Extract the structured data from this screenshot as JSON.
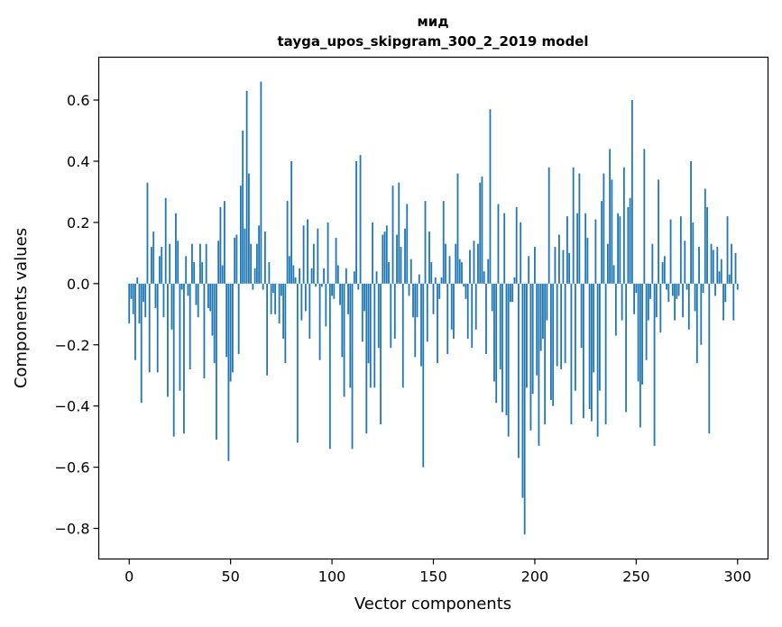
{
  "chart_data": {
    "type": "bar",
    "title_line1": "мид",
    "title_line2": "tayga_upos_skipgram_300_2_2019 model",
    "xlabel": "Vector components",
    "ylabel": "Components values",
    "xlim": [
      -15,
      315
    ],
    "ylim": [
      -0.9,
      0.74
    ],
    "xticks": [
      0,
      50,
      100,
      150,
      200,
      250,
      300
    ],
    "xtick_labels": [
      "0",
      "50",
      "100",
      "150",
      "200",
      "250",
      "300"
    ],
    "yticks": [
      -0.8,
      -0.6,
      -0.4,
      -0.2,
      0.0,
      0.2,
      0.4,
      0.6
    ],
    "ytick_labels": [
      "−0.8",
      "−0.6",
      "−0.4",
      "−0.2",
      "0.0",
      "0.2",
      "0.4",
      "0.6"
    ],
    "bar_color": "#1f77b4",
    "values": [
      -0.13,
      -0.05,
      -0.1,
      -0.25,
      0.02,
      -0.13,
      -0.39,
      -0.06,
      -0.11,
      0.33,
      -0.29,
      0.12,
      0.17,
      -0.08,
      -0.29,
      0.09,
      0.12,
      -0.11,
      0.28,
      -0.37,
      0.13,
      -0.15,
      -0.5,
      0.23,
      0.14,
      -0.35,
      -0.02,
      -0.49,
      0.09,
      -0.04,
      -0.28,
      0.13,
      0.07,
      -0.07,
      -0.11,
      0.13,
      0.07,
      -0.31,
      0.13,
      -0.08,
      -0.09,
      -0.17,
      -0.26,
      -0.51,
      0.14,
      0.25,
      0.06,
      0.27,
      -0.24,
      -0.58,
      -0.32,
      -0.29,
      0.15,
      0.16,
      -0.23,
      0.32,
      0.5,
      0.18,
      0.63,
      0.36,
      0.13,
      -0.02,
      0.05,
      0.13,
      0.19,
      0.66,
      -0.02,
      0.17,
      -0.3,
      0.07,
      -0.1,
      -0.03,
      -0.1,
      0.0,
      -0.13,
      -0.04,
      -0.18,
      -0.26,
      0.27,
      0.09,
      0.4,
      0.06,
      0.02,
      -0.52,
      0.05,
      -0.12,
      0.19,
      -0.09,
      0.21,
      -0.18,
      0.05,
      0.13,
      -0.01,
      0.18,
      -0.25,
      -0.01,
      0.05,
      -0.14,
      0.2,
      -0.54,
      -0.04,
      -0.05,
      0.15,
      0.06,
      -0.07,
      -0.24,
      -0.37,
      0.05,
      -0.1,
      -0.34,
      -0.54,
      0.04,
      0.4,
      -0.02,
      0.42,
      -0.19,
      -0.09,
      -0.49,
      -0.26,
      -0.34,
      0.2,
      -0.34,
      0.04,
      -0.21,
      -0.46,
      0.16,
      0.17,
      0.19,
      0.07,
      -0.21,
      0.32,
      -0.18,
      0.16,
      0.33,
      0.12,
      -0.34,
      0.18,
      0.26,
      -0.04,
      0.08,
      -0.11,
      -0.24,
      -0.11,
      0.03,
      -0.27,
      -0.6,
      0.27,
      -0.19,
      0.17,
      0.07,
      -0.1,
      0.02,
      -0.26,
      -0.05,
      0.02,
      0.27,
      0.13,
      -0.23,
      0.09,
      -0.15,
      -0.18,
      0.13,
      0.36,
      0.08,
      0.07,
      -0.01,
      -0.05,
      -0.18,
      0.11,
      -0.21,
      0.14,
      -0.15,
      0.13,
      0.33,
      0.35,
      0.04,
      -0.23,
      0.08,
      0.57,
      -0.09,
      -0.32,
      -0.39,
      0.26,
      -0.28,
      -0.42,
      0.23,
      -0.43,
      -0.5,
      -0.06,
      -0.06,
      0.02,
      0.25,
      -0.57,
      0.2,
      -0.7,
      -0.82,
      -0.34,
      0.09,
      -0.48,
      -0.36,
      0.12,
      -0.3,
      -0.53,
      -0.22,
      -0.18,
      -0.46,
      -0.12,
      0.38,
      -0.38,
      -0.4,
      0.12,
      -0.27,
      0.16,
      -0.28,
      0.11,
      -0.26,
      0.22,
      0.1,
      -0.46,
      0.38,
      -0.35,
      0.23,
      0.36,
      -0.21,
      -0.44,
      0.23,
      0.15,
      -0.41,
      -0.45,
      -0.29,
      0.21,
      -0.5,
      -0.35,
      0.27,
      0.36,
      -0.46,
      0.13,
      0.44,
      0.34,
      0.06,
      -0.17,
      0.23,
      0.22,
      -0.12,
      0.38,
      -0.42,
      0.25,
      0.28,
      0.6,
      -0.1,
      -0.03,
      -0.32,
      -0.47,
      -0.33,
      0.44,
      -0.25,
      -0.12,
      -0.05,
      0.13,
      -0.53,
      -0.11,
      0.34,
      -0.16,
      0.07,
      0.09,
      -0.02,
      -0.06,
      0.21,
      -0.04,
      -0.12,
      -0.05,
      -0.04,
      0.22,
      -0.11,
      0.14,
      -0.02,
      -0.15,
      0.4,
      0.2,
      -0.09,
      -0.26,
      0.12,
      -0.2,
      -0.03,
      0.31,
      0.25,
      -0.49,
      0.13,
      0.11,
      -0.04,
      0.12,
      0.04,
      0.08,
      -0.12,
      -0.06,
      0.22,
      0.03,
      0.13,
      -0.12,
      0.1,
      -0.02
    ]
  }
}
